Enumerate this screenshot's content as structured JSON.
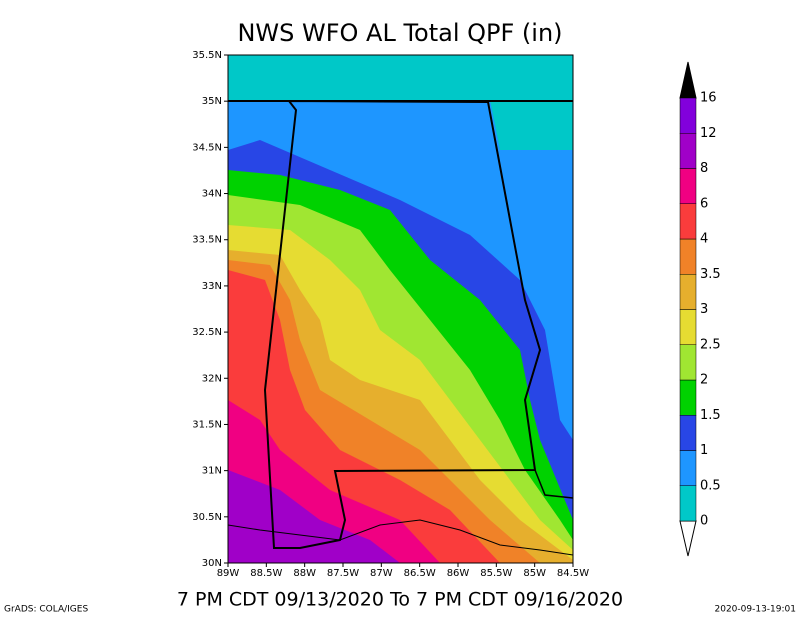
{
  "title": "NWS WFO AL Total QPF (in)",
  "map": {
    "lat_range": [
      30,
      35.5
    ],
    "lon_range": [
      -89,
      -84.5
    ],
    "lat_ticks": [
      {
        "value": 30,
        "label": "30N"
      },
      {
        "value": 30.5,
        "label": "30.5N"
      },
      {
        "value": 31,
        "label": "31N"
      },
      {
        "value": 31.5,
        "label": "31.5N"
      },
      {
        "value": 32,
        "label": "32N"
      },
      {
        "value": 32.5,
        "label": "32.5N"
      },
      {
        "value": 33,
        "label": "33N"
      },
      {
        "value": 33.5,
        "label": "33.5N"
      },
      {
        "value": 34,
        "label": "34N"
      },
      {
        "value": 34.5,
        "label": "34.5N"
      },
      {
        "value": 35,
        "label": "35N"
      },
      {
        "value": 35.5,
        "label": "35.5N"
      }
    ],
    "lon_ticks": [
      {
        "value": -89,
        "label": "89W"
      },
      {
        "value": -88.5,
        "label": "88.5W"
      },
      {
        "value": -88,
        "label": "88W"
      },
      {
        "value": -87.5,
        "label": "87.5W"
      },
      {
        "value": -87,
        "label": "87W"
      },
      {
        "value": -86.5,
        "label": "86.5W"
      },
      {
        "value": -86,
        "label": "86W"
      },
      {
        "value": -85.5,
        "label": "85.5W"
      },
      {
        "value": -85,
        "label": "85W"
      },
      {
        "value": -84.5,
        "label": "84.5W"
      }
    ]
  },
  "legend": {
    "levels": [
      0,
      0.5,
      1,
      1.5,
      2,
      2.5,
      3,
      3.5,
      4,
      6,
      8,
      12,
      16
    ],
    "colors": [
      "#00c8c8",
      "#1e96ff",
      "#2846e6",
      "#00d200",
      "#a0e632",
      "#e6dc32",
      "#e6af2d",
      "#f08228",
      "#fa3c3c",
      "#f00082",
      "#a000c8",
      "#8200dc"
    ]
  },
  "footer": "7 PM CDT 09/13/2020 To 7 PM CDT 09/16/2020",
  "credit": "GrADS: COLA/IGES",
  "timestamp": "2020-09-13-19:01"
}
